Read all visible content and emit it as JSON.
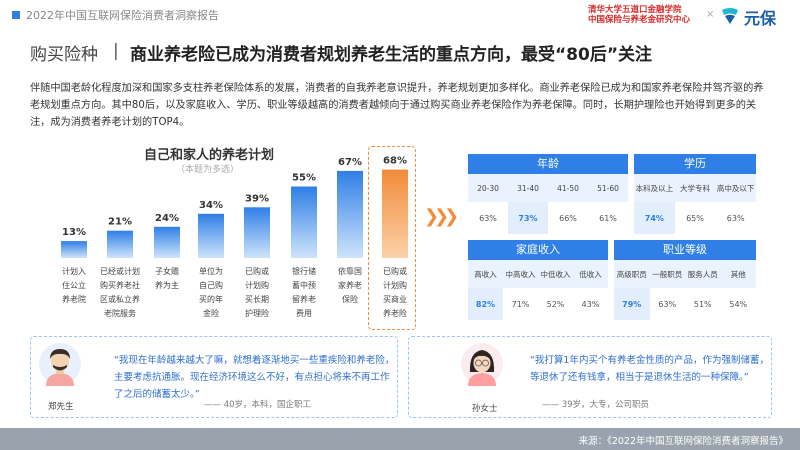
{
  "header": {
    "report_title": "2022年中国互联网保险消费者洞察报告",
    "partner_line1": "清华大学五道口金融学院",
    "partner_line2": "中国保险与养老金研究中心",
    "times_sign": "×",
    "brand_name": "元保"
  },
  "section": {
    "label": "购买险种",
    "separator": "|",
    "headline": "商业养老险已成为消费者规划养老生活的重点方向，最受“80后”关注"
  },
  "intro": "伴随中国老龄化程度加深和国家多支柱养老保险体系的发展，消费者的自我养老意识提升，养老规划更加多样化。商业养老保险已成为和国家养老保险并驾齐驱的养老规划重点方向。其中80后，以及家庭收入、学历、职业等级越高的消费者越倾向于通过购买商业养老保险作为养老保障。同时，长期护理险也开始得到更多的关注，成为消费者养老计划的TOP4。",
  "chart_data": {
    "type": "bar",
    "title": "自己和家人的养老计划",
    "subtitle": "（本题为多选）",
    "categories": [
      [
        "计划入",
        "住公立",
        "养老院"
      ],
      [
        "已经或计划",
        "购买养老社",
        "区或私立养",
        "老院服务"
      ],
      [
        "子女赡",
        "养为主"
      ],
      [
        "单位为",
        "自己购",
        "买的年",
        "金险"
      ],
      [
        "已购或",
        "计划购",
        "买长期",
        "护理险"
      ],
      [
        "银行储",
        "蓄中预",
        "留养老",
        "费用"
      ],
      [
        "依靠国",
        "家养老",
        "保险"
      ],
      [
        "已购或",
        "计划购",
        "买商业",
        "养老险"
      ]
    ],
    "values": [
      13,
      21,
      24,
      34,
      39,
      55,
      67,
      68
    ],
    "value_labels": [
      "13%",
      "21%",
      "24%",
      "34%",
      "39%",
      "55%",
      "67%",
      "68%"
    ],
    "unit": "%",
    "highlight_index": 7,
    "colors": {
      "gradient_from": "#cfe4fb",
      "gradient_to": "#2f7fe6",
      "highlight_from": "#fbd2a9",
      "highlight_to": "#f28b3a",
      "highlight_text": "#f28b3a"
    }
  },
  "breakdown": {
    "age": {
      "title": "年龄",
      "columns": [
        "20-30",
        "31-40",
        "41-50",
        "51-60"
      ],
      "values": [
        "63%",
        "73%",
        "66%",
        "61%"
      ],
      "highlight": 1
    },
    "education": {
      "title": "学历",
      "columns": [
        "本科及以上",
        "大学专科",
        "高中及以下"
      ],
      "values": [
        "74%",
        "65%",
        "63%"
      ],
      "highlight": 0
    },
    "income": {
      "title": "家庭收入",
      "columns": [
        "高收入",
        "中高收入",
        "中低收入",
        "低收入"
      ],
      "values": [
        "82%",
        "71%",
        "52%",
        "43%"
      ],
      "highlight": 0
    },
    "occupation": {
      "title": "职业等级",
      "columns": [
        "高级职员",
        "一般职员",
        "服务人员",
        "其他"
      ],
      "values": [
        "79%",
        "63%",
        "51%",
        "54%"
      ],
      "highlight": 0
    }
  },
  "quotes": [
    {
      "name": "郑先生",
      "text": "“我现在年龄越来越大了嘛，就想着逐渐地买一些重疾险和养老险，主要考虑抗通胀。现在经济环境这么不好，有点担心将来不再工作了之后的储蓄太少。”",
      "attribution": "—— 40岁，本科，国企职工"
    },
    {
      "name": "孙女士",
      "text": "“我打算1年内买个有养老金性质的产品，作为强制储蓄，等退休了还有钱拿，相当于是退休生活的一种保障。”",
      "attribution": "—— 39岁，大专，公司职员"
    }
  ],
  "footer": {
    "source": "来源：《2022年中国互联网保险消费者洞察报告》"
  },
  "colors": {
    "accent": "#2f7fe6",
    "highlight": "#f28b3a",
    "partner_red": "#d62b2b",
    "brand_blue": "#1b5fa8",
    "quote_text": "#2f6fd0",
    "footer_gray": "#9aa3ad"
  }
}
